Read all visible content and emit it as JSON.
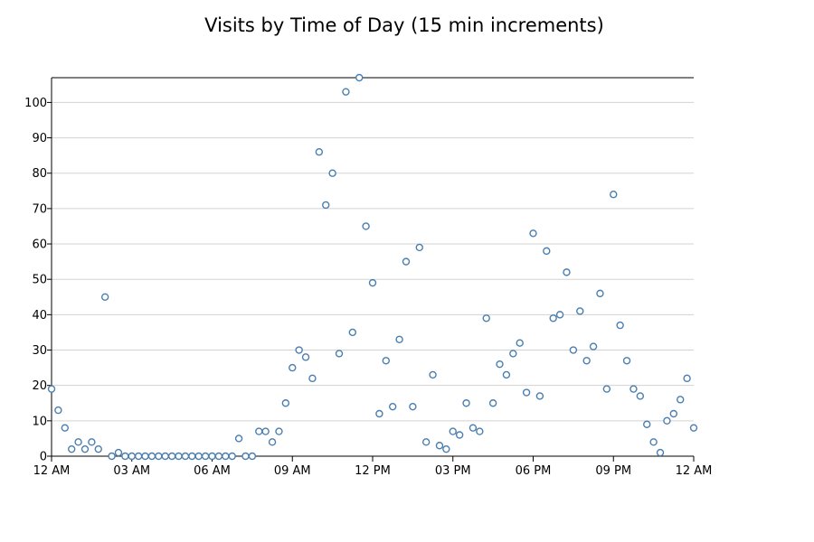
{
  "chart_data": {
    "type": "scatter",
    "title": "Visits by Time of Day (15 min increments)",
    "xlabel": "",
    "ylabel": "",
    "x_unit": "minutes after midnight",
    "x_step": 15,
    "xlim": [
      0,
      1440
    ],
    "ylim": [
      0,
      107
    ],
    "x_tick_values": [
      0,
      180,
      360,
      540,
      720,
      900,
      1080,
      1260,
      1440
    ],
    "x_tick_labels": [
      "12 AM",
      "03 AM",
      "06 AM",
      "09 AM",
      "12 PM",
      "03 PM",
      "06 PM",
      "09 PM",
      "12 AM"
    ],
    "y_tick_values": [
      0,
      10,
      20,
      30,
      40,
      50,
      60,
      70,
      80,
      90,
      100
    ],
    "y_tick_labels": [
      "0",
      "10",
      "20",
      "30",
      "40",
      "50",
      "60",
      "70",
      "80",
      "90",
      "100"
    ],
    "grid": true,
    "colors": {
      "marker": "#4a7eb0",
      "grid": "#d3d3d3",
      "axis": "#000000"
    },
    "values": [
      19,
      13,
      8,
      2,
      4,
      2,
      4,
      2,
      45,
      0,
      1,
      0,
      0,
      0,
      0,
      0,
      0,
      0,
      0,
      0,
      0,
      0,
      0,
      0,
      0,
      0,
      0,
      0,
      5,
      0,
      0,
      7,
      7,
      4,
      7,
      15,
      25,
      30,
      28,
      22,
      86,
      71,
      80,
      29,
      103,
      35,
      107,
      65,
      49,
      12,
      27,
      14,
      33,
      55,
      14,
      59,
      4,
      23,
      3,
      2,
      7,
      6,
      15,
      8,
      7,
      39,
      15,
      26,
      23,
      29,
      32,
      18,
      63,
      17,
      58,
      39,
      40,
      52,
      30,
      41,
      27,
      31,
      46,
      19,
      74,
      37,
      27,
      19,
      17,
      9,
      4,
      1,
      10,
      12,
      16,
      22,
      8
    ]
  }
}
